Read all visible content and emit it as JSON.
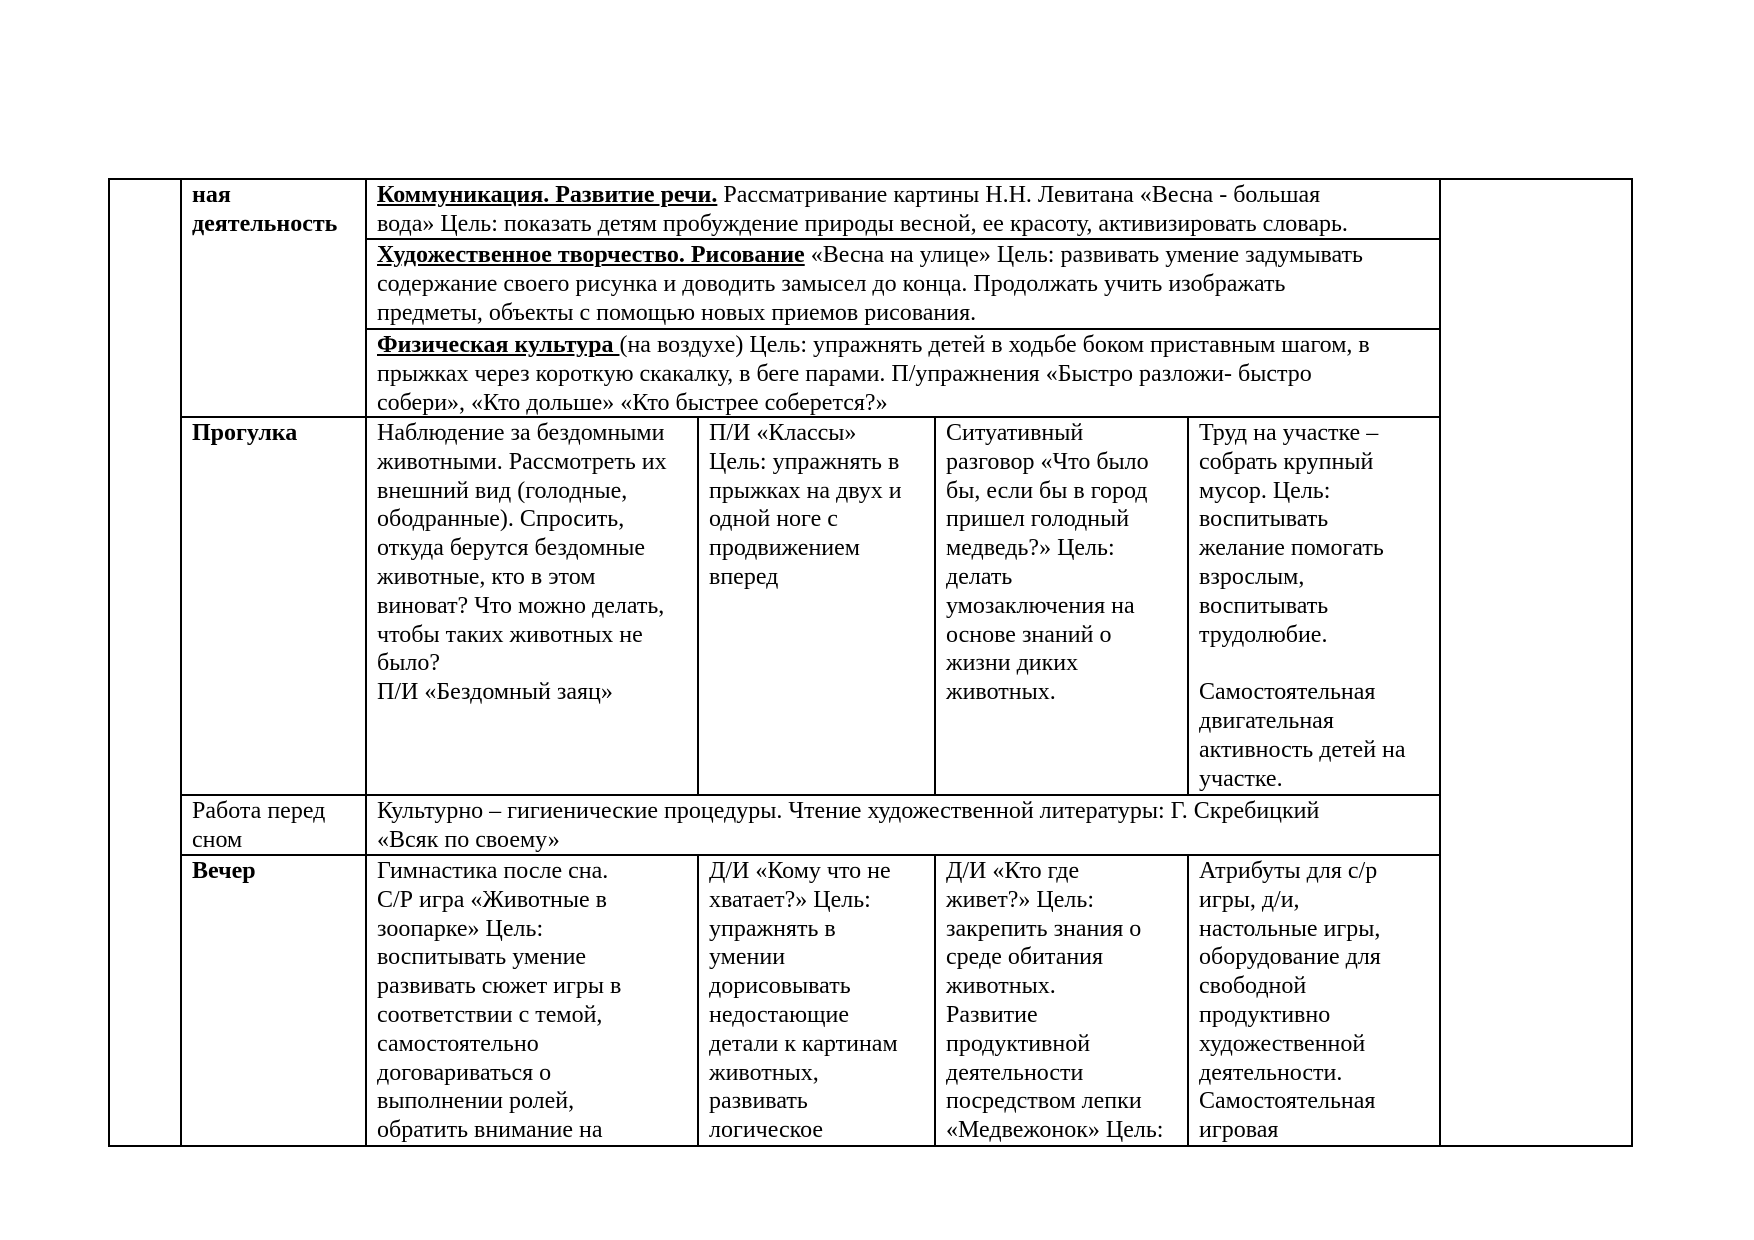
{
  "table": {
    "activity": {
      "label": "ная\nдеятельность",
      "sections": [
        {
          "lead": "Коммуникация. Развитие речи.",
          "text": " Рассматривание картины Н.Н. Левитана «Весна - большая\nвода» Цель: показать детям пробуждение природы весной, ее красоту, активизировать словарь."
        },
        {
          "lead": "Художественное творчество. Рисование",
          "text": "  «Весна на улице» Цель: развивать умение задумывать\nсодержание своего рисунка и доводить замысел до конца. Продолжать  учить изображать\nпредметы, объекты с помощью новых приемов рисования."
        },
        {
          "lead": "Физическая культура ",
          "text": "(на воздухе) Цель: упражнять детей в ходьбе боком приставным шагом, в\nпрыжках через короткую скакалку, в беге парами. П/упражнения «Быстро разложи- быстро\nсобери», «Кто дольше» «Кто быстрее соберется?»"
        }
      ]
    },
    "walk": {
      "label": "Прогулка",
      "cells": [
        "Наблюдение за бездомными\nживотными. Рассмотреть их\nвнешний вид (голодные,\nободранные). Спросить,\nоткуда берутся бездомные\nживотные, кто в этом\nвиноват? Что можно делать,\nчтобы таких животных не\nбыло?\nП/И «Бездомный заяц»",
        "П/И «Классы»\nЦель: упражнять в\nпрыжках на двух и\nодной ноге с\nпродвижением\nвперед",
        "Ситуативный\nразговор «Что было\nбы, если бы в город\nпришел голодный\nмедведь?»  Цель:\nделать\nумозаключения на\nоснове знаний о\nжизни диких\nживотных.",
        "Труд на участке –\nсобрать крупный\nмусор. Цель:\nвоспитывать\nжелание помогать\nвзрослым,\nвоспитывать\nтрудолюбие.\n\nСамостоятельная\nдвигательная\nактивность детей на\nучастке."
      ]
    },
    "before_sleep": {
      "label": "Работа перед\nсном",
      "text": "Культурно – гигиенические процедуры. Чтение художественной литературы: Г. Скребицкий\n«Всяк по своему»"
    },
    "evening": {
      "label": "Вечер",
      "cells": [
        "Гимнастика после сна.\nС/Р игра «Животные в\nзоопарке» Цель:\nвоспитывать умение\nразвивать сюжет игры в\nсоответствии с темой,\nсамостоятельно\nдоговариваться о\nвыполнении ролей,\nобратить внимание на",
        "Д/И «Кому что не\nхватает?» Цель:\nупражнять в\nумении\nдорисовывать\nнедостающие\nдетали к картинам\nживотных,\nразвивать\nлогическое",
        "Д/И «Кто где\nживет?» Цель:\nзакрепить знания о\nсреде обитания\nживотных.\nРазвитие\nпродуктивной\nдеятельности\nпосредством лепки\n«Медвежонок» Цель:",
        "Атрибуты для с/р\nигры, д/и,\nнастольные игры,\nоборудование для\nсвободной\nпродуктивно\nхудожественной\nдеятельности.\nСамостоятельная\nигровая"
      ]
    }
  }
}
